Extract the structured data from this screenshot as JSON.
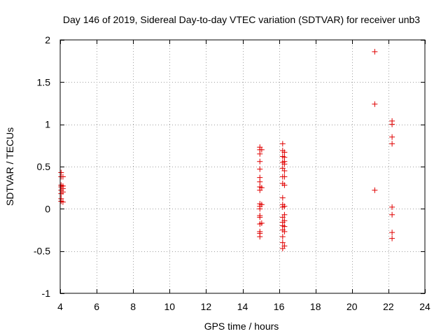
{
  "chart_data": {
    "type": "scatter",
    "title": "Day 146 of 2019, Sidereal Day-to-day VTEC variation (SDTVAR) for receiver unb3",
    "xlabel": "GPS time / hours",
    "ylabel": "SDTVAR / TECUs",
    "xlim": [
      4,
      24
    ],
    "ylim": [
      -1,
      2
    ],
    "xticks": [
      4,
      6,
      8,
      10,
      12,
      14,
      16,
      18,
      20,
      22,
      24
    ],
    "yticks": [
      -1,
      -0.5,
      0,
      0.5,
      1,
      1.5,
      2
    ],
    "xtick_labels": [
      "4",
      "6",
      "8",
      "10",
      "12",
      "14",
      "16",
      "18",
      "20",
      "22",
      "24"
    ],
    "ytick_labels": [
      "-1",
      "-0.5",
      "0",
      "0.5",
      "1",
      "1.5",
      "2"
    ],
    "grid": true,
    "marker": "+",
    "color": "#e00000",
    "series": [
      {
        "name": "SDTVAR",
        "points": [
          [
            4.05,
            0.43
          ],
          [
            4.05,
            0.38
          ],
          [
            4.05,
            0.28
          ],
          [
            4.05,
            0.26
          ],
          [
            4.05,
            0.22
          ],
          [
            4.05,
            0.18
          ],
          [
            4.05,
            0.12
          ],
          [
            4.05,
            0.09
          ],
          [
            4.15,
            0.38
          ],
          [
            4.15,
            0.27
          ],
          [
            4.15,
            0.24
          ],
          [
            4.15,
            0.2
          ],
          [
            4.15,
            0.08
          ],
          [
            14.95,
            0.73
          ],
          [
            14.95,
            0.7
          ],
          [
            14.95,
            0.65
          ],
          [
            14.95,
            0.56
          ],
          [
            14.95,
            0.47
          ],
          [
            14.95,
            0.37
          ],
          [
            14.95,
            0.32
          ],
          [
            14.95,
            0.26
          ],
          [
            14.95,
            0.22
          ],
          [
            14.95,
            0.06
          ],
          [
            14.95,
            0.03
          ],
          [
            14.95,
            0.0
          ],
          [
            14.95,
            -0.08
          ],
          [
            14.95,
            -0.1
          ],
          [
            14.95,
            -0.18
          ],
          [
            14.95,
            -0.27
          ],
          [
            14.95,
            -0.29
          ],
          [
            14.95,
            -0.33
          ],
          [
            15.05,
            0.7
          ],
          [
            15.05,
            0.25
          ],
          [
            15.05,
            0.05
          ],
          [
            15.05,
            -0.17
          ],
          [
            16.2,
            0.77
          ],
          [
            16.2,
            0.69
          ],
          [
            16.2,
            0.62
          ],
          [
            16.2,
            0.55
          ],
          [
            16.2,
            0.48
          ],
          [
            16.2,
            0.38
          ],
          [
            16.2,
            0.3
          ],
          [
            16.2,
            0.13
          ],
          [
            16.2,
            0.05
          ],
          [
            16.2,
            0.02
          ],
          [
            16.2,
            -0.1
          ],
          [
            16.2,
            -0.16
          ],
          [
            16.2,
            -0.2
          ],
          [
            16.2,
            -0.25
          ],
          [
            16.2,
            -0.33
          ],
          [
            16.2,
            -0.4
          ],
          [
            16.2,
            -0.47
          ],
          [
            16.3,
            0.67
          ],
          [
            16.3,
            0.61
          ],
          [
            16.3,
            0.56
          ],
          [
            16.3,
            0.53
          ],
          [
            16.3,
            0.45
          ],
          [
            16.3,
            0.38
          ],
          [
            16.3,
            0.28
          ],
          [
            16.3,
            0.03
          ],
          [
            16.3,
            -0.07
          ],
          [
            16.3,
            -0.14
          ],
          [
            16.3,
            -0.21
          ],
          [
            16.3,
            -0.27
          ],
          [
            16.3,
            -0.44
          ],
          [
            21.25,
            1.86
          ],
          [
            21.25,
            1.24
          ],
          [
            21.25,
            0.22
          ],
          [
            22.2,
            1.04
          ],
          [
            22.2,
            1.0
          ],
          [
            22.2,
            0.85
          ],
          [
            22.2,
            0.77
          ],
          [
            22.2,
            0.02
          ],
          [
            22.2,
            -0.07
          ],
          [
            22.2,
            -0.28
          ],
          [
            22.2,
            -0.35
          ]
        ]
      }
    ]
  }
}
